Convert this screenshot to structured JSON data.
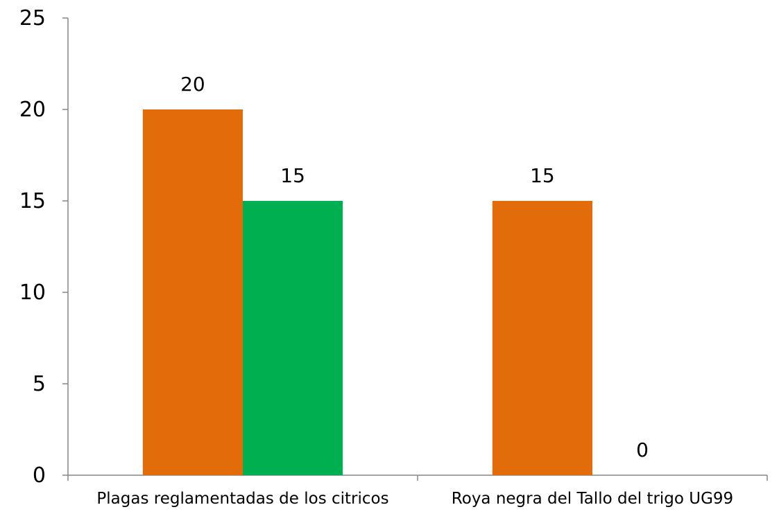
{
  "chart_data": {
    "type": "bar",
    "categories": [
      "Plagas reglamentadas de los citricos",
      "Roya negra del Tallo del trigo UG99"
    ],
    "series": [
      {
        "values": [
          20,
          15
        ],
        "color": "#E36C0A"
      },
      {
        "values": [
          15,
          0
        ],
        "color": "#00B050"
      }
    ],
    "data_labels": [
      [
        "20",
        "15"
      ],
      [
        "15",
        "0"
      ]
    ],
    "y_ticks": [
      0,
      5,
      10,
      15,
      20,
      25
    ],
    "ylim": [
      0,
      25
    ],
    "title": "",
    "xlabel": "",
    "ylabel": "",
    "legend": "none",
    "grid": false,
    "axis_color": "#868686"
  }
}
